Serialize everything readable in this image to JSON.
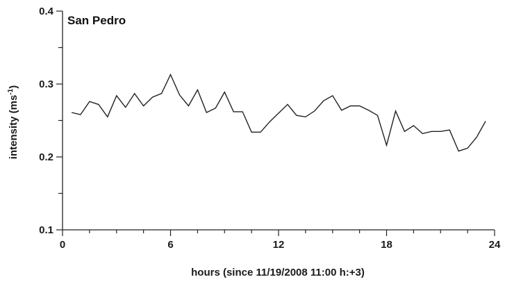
{
  "chart_data": {
    "type": "line",
    "title": "San Pedro",
    "xlabel": "hours (since 11/19/2008 11:00 h:+3)",
    "ylabel": "intensity (ms",
    "ylabel_sup": "-1",
    "ylabel_close": ")",
    "xlim": [
      0,
      24
    ],
    "ylim": [
      0.1,
      0.4
    ],
    "x_ticks": [
      0,
      6,
      12,
      18,
      24
    ],
    "x_tick_labels": [
      "0",
      "6",
      "12",
      "18",
      "24"
    ],
    "y_ticks": [
      0.1,
      0.2,
      0.3,
      0.4
    ],
    "y_tick_labels": [
      "0.1",
      "0.2",
      "0.3",
      "0.4"
    ],
    "grid": false,
    "line_color": "#222222",
    "series": [
      {
        "x": [
          0.5,
          1.0,
          1.5,
          2.0,
          2.5,
          3.0,
          3.5,
          4.0,
          4.5,
          5.0,
          5.5,
          6.0,
          6.5,
          7.0,
          7.5,
          8.0,
          8.5,
          9.0,
          9.5,
          10.0,
          10.5,
          11.0,
          11.5,
          12.0,
          12.5,
          13.0,
          13.5,
          14.0,
          14.5,
          15.0,
          15.5,
          16.0,
          16.5,
          17.0,
          17.5,
          18.0,
          18.5,
          19.0,
          19.5,
          20.0,
          20.5,
          21.0,
          21.5,
          22.0,
          22.5,
          23.0,
          23.5
        ],
        "y": [
          0.261,
          0.258,
          0.276,
          0.272,
          0.255,
          0.284,
          0.268,
          0.287,
          0.27,
          0.282,
          0.287,
          0.313,
          0.285,
          0.27,
          0.292,
          0.261,
          0.267,
          0.289,
          0.262,
          0.262,
          0.234,
          0.234,
          0.248,
          0.26,
          0.272,
          0.257,
          0.255,
          0.263,
          0.277,
          0.284,
          0.264,
          0.27,
          0.27,
          0.264,
          0.257,
          0.216,
          0.263,
          0.235,
          0.243,
          0.232,
          0.235,
          0.235,
          0.237,
          0.208,
          0.212,
          0.227,
          0.249
        ]
      }
    ]
  }
}
